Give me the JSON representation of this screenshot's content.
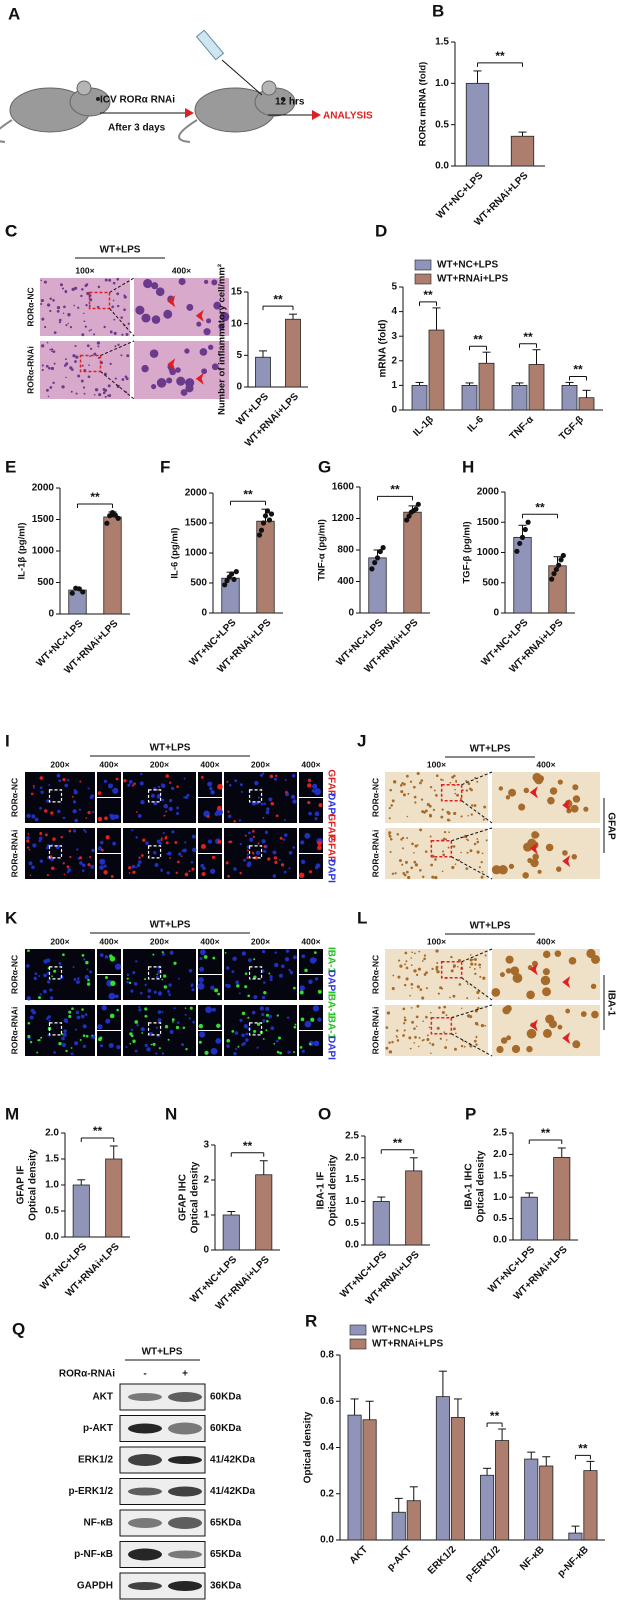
{
  "figures": [
    {
      "panel": "A",
      "route": "ICV RORα RNAi",
      "interval": "After 3 days",
      "wait": "12 hrs",
      "end": "ANALYSIS"
    },
    {
      "panel": "C",
      "header": "WT+LPS",
      "mags": [
        "100×",
        "400×"
      ],
      "rows": [
        "RORα-NC",
        "RORα-RNAi"
      ]
    },
    {
      "panel": "I",
      "header": "WT+LPS",
      "mags": [
        "200×",
        "400×",
        "200×",
        "400×",
        "200×",
        "400×"
      ],
      "rows": [
        "RORα-NC",
        "RORα-RNAi"
      ],
      "stains": [
        "GFAP",
        "DAPI",
        "GFAP",
        "GFAP",
        "DAPI"
      ],
      "stain_colors": [
        "#e02020",
        "#2a35e0",
        "#e02020",
        "#e02020",
        "#2a35e0"
      ]
    },
    {
      "panel": "J",
      "header": "WT+LPS",
      "mags": [
        "100×",
        "400×"
      ],
      "rows": [
        "RORα-NC",
        "RORα-RNAi"
      ],
      "marker": "GFAP"
    },
    {
      "panel": "K",
      "header": "WT+LPS",
      "mags": [
        "200×",
        "400×",
        "200×",
        "400×",
        "200×",
        "400×"
      ],
      "rows": [
        "RORα-NC",
        "RORα-RNAi"
      ],
      "stains": [
        "IBA-1",
        "DAPI",
        "IBA-1",
        "IBA-1",
        "DAPI"
      ],
      "stain_colors": [
        "#22c020",
        "#2a35e0",
        "#22c020",
        "#22c020",
        "#2a35e0"
      ]
    },
    {
      "panel": "L",
      "header": "WT+LPS",
      "mags": [
        "100×",
        "400×"
      ],
      "rows": [
        "RORα-NC",
        "RORα-RNAi"
      ],
      "marker": "IBA-1"
    },
    {
      "panel": "Q",
      "header": "WT+LPS",
      "treatment": "RORα-RNAi",
      "levels": [
        "-",
        "+"
      ],
      "bands": [
        {
          "protein": "AKT",
          "size": "60KDa"
        },
        {
          "protein": "p-AKT",
          "size": "60KDa"
        },
        {
          "protein": "ERK1/2",
          "size": "41/42KDa"
        },
        {
          "protein": "p-ERK1/2",
          "size": "41/42KDa"
        },
        {
          "protein": "NF-κB",
          "size": "65KDa"
        },
        {
          "protein": "p-NF-κB",
          "size": "65KDa"
        },
        {
          "protein": "GAPDH",
          "size": "36KDa"
        }
      ]
    }
  ],
  "chart_data": [
    {
      "panel": "B",
      "type": "bar",
      "ylabel": [
        "RORα mRNA (fold)"
      ],
      "categories": [
        "WT+NC+LPS",
        "WT+RNAi+LPS"
      ],
      "values": [
        1.0,
        0.36
      ],
      "errors": [
        0.15,
        0.05
      ],
      "colors": [
        "#8f94b8",
        "#ad7d6e"
      ],
      "ylim": [
        0,
        1.5
      ],
      "yticks": [
        {
          "value": 0,
          "label": "0.0"
        },
        0.5,
        {
          "value": 1,
          "label": "1.0"
        },
        1.5
      ],
      "sig": "**"
    },
    {
      "panel": "C",
      "type": "bar",
      "ylabel": [
        "Number of inflammatory cell/mm²"
      ],
      "categories": [
        "WT+LPS",
        "WT+RNAi+LPS"
      ],
      "values": [
        4.7,
        10.7
      ],
      "errors": [
        1.0,
        0.8
      ],
      "colors": [
        "#8f94b8",
        "#ad7d6e"
      ],
      "ylim": [
        0,
        15
      ],
      "yticks": [
        0,
        5,
        10,
        15
      ],
      "sig": "**"
    },
    {
      "panel": "D",
      "type": "bar",
      "ylabel": [
        "mRNA (fold)"
      ],
      "categories": [
        "IL-1β",
        "IL-6",
        "TNF-α",
        "TGF-β"
      ],
      "series": [
        {
          "name": "WT+NC+LPS",
          "color": "#8f94b8",
          "values": [
            1.0,
            1.0,
            1.0,
            1.0
          ],
          "errors": [
            0.12,
            0.1,
            0.1,
            0.12
          ]
        },
        {
          "name": "WT+RNAi+LPS",
          "color": "#ad7d6e",
          "values": [
            3.25,
            1.9,
            1.85,
            0.5
          ],
          "errors": [
            0.9,
            0.45,
            0.6,
            0.3
          ]
        }
      ],
      "legend": "top",
      "ylim": [
        0,
        5
      ],
      "yticks": [
        0,
        1,
        2,
        3,
        4,
        5
      ],
      "sig": [
        "**",
        "**",
        "**",
        "**"
      ]
    },
    {
      "panel": "E",
      "type": "bar",
      "ylabel": [
        "IL-1β (pg/ml)"
      ],
      "categories": [
        "WT+NC+LPS",
        "WT+RNAi+LPS"
      ],
      "values": [
        380,
        1540
      ],
      "errors": [
        40,
        80
      ],
      "points": [
        [
          330,
          410,
          400,
          350
        ],
        [
          1440,
          1560,
          1610,
          1570,
          1520
        ]
      ],
      "colors": [
        "#8f94b8",
        "#ad7d6e"
      ],
      "ylim": [
        0,
        2000
      ],
      "yticks": [
        0,
        500,
        1000,
        1500,
        2000
      ],
      "sig": "**"
    },
    {
      "panel": "F",
      "type": "bar",
      "ylabel": [
        "IL-6 (pg/ml)"
      ],
      "categories": [
        "WT+NC+LPS",
        "WT+RNAi+LPS"
      ],
      "values": [
        580,
        1530
      ],
      "errors": [
        100,
        200
      ],
      "points": [
        [
          470,
          540,
          600,
          650,
          560,
          690
        ],
        [
          1300,
          1380,
          1500,
          1620,
          1700,
          1550,
          1650
        ]
      ],
      "colors": [
        "#8f94b8",
        "#ad7d6e"
      ],
      "ylim": [
        0,
        2000
      ],
      "yticks": [
        0,
        500,
        1000,
        1500,
        2000
      ],
      "sig": "**"
    },
    {
      "panel": "G",
      "type": "bar",
      "ylabel": [
        "TNF-α (pg/ml)"
      ],
      "categories": [
        "WT+NC+LPS",
        "WT+RNAi+LPS"
      ],
      "values": [
        700,
        1280
      ],
      "errors": [
        100,
        80
      ],
      "points": [
        [
          560,
          640,
          700,
          780,
          830
        ],
        [
          1180,
          1230,
          1280,
          1300,
          1320,
          1380
        ]
      ],
      "colors": [
        "#8f94b8",
        "#ad7d6e"
      ],
      "ylim": [
        0,
        1600
      ],
      "yticks": [
        0,
        400,
        800,
        1200,
        1600
      ],
      "sig": "**"
    },
    {
      "panel": "H",
      "type": "bar",
      "ylabel": [
        "TGF-β (pg/ml)"
      ],
      "categories": [
        "WT+NC+LPS",
        "WT+RNAi+LPS"
      ],
      "values": [
        1250,
        780
      ],
      "errors": [
        200,
        150
      ],
      "points": [
        [
          1020,
          1150,
          1250,
          1380,
          1500
        ],
        [
          560,
          650,
          720,
          790,
          880,
          950
        ]
      ],
      "colors": [
        "#8f94b8",
        "#ad7d6e"
      ],
      "ylim": [
        0,
        2000
      ],
      "yticks": [
        0,
        500,
        1000,
        1500,
        2000
      ],
      "sig": "**"
    },
    {
      "panel": "M",
      "type": "bar",
      "ylabel": [
        "GFAP IF",
        "Optical density"
      ],
      "categories": [
        "WT+NC+LPS",
        "WT+RNAi+LPS"
      ],
      "values": [
        1.0,
        1.5
      ],
      "errors": [
        0.1,
        0.25
      ],
      "colors": [
        "#8f94b8",
        "#ad7d6e"
      ],
      "ylim": [
        0,
        2
      ],
      "yticks": [
        {
          "value": 0,
          "label": "0.0"
        },
        0.5,
        {
          "value": 1,
          "label": "1.0"
        },
        1.5,
        {
          "value": 2,
          "label": "2.0"
        }
      ],
      "sig": "**"
    },
    {
      "panel": "N",
      "type": "bar",
      "ylabel": [
        "GFAP IHC",
        "Optical density"
      ],
      "categories": [
        "WT+NC+LPS",
        "WT+RNAi+LPS"
      ],
      "values": [
        1.0,
        2.15
      ],
      "errors": [
        0.1,
        0.4
      ],
      "colors": [
        "#8f94b8",
        "#ad7d6e"
      ],
      "ylim": [
        0,
        3
      ],
      "yticks": [
        0,
        1,
        2,
        3
      ],
      "sig": "**"
    },
    {
      "panel": "O",
      "type": "bar",
      "ylabel": [
        "IBA-1 IF",
        "Optical density"
      ],
      "categories": [
        "WT+NC+LPS",
        "WT+RNAi+LPS"
      ],
      "values": [
        1.0,
        1.7
      ],
      "errors": [
        0.1,
        0.3
      ],
      "colors": [
        "#8f94b8",
        "#ad7d6e"
      ],
      "ylim": [
        0,
        2.5
      ],
      "yticks": [
        {
          "value": 0,
          "label": "0.0"
        },
        0.5,
        {
          "value": 1,
          "label": "1.0"
        },
        1.5,
        {
          "value": 2,
          "label": "2.0"
        },
        2.5
      ],
      "sig": "**"
    },
    {
      "panel": "P",
      "type": "bar",
      "ylabel": [
        "IBA-1 IHC",
        "Optical density"
      ],
      "categories": [
        "WT+NC+LPS",
        "WT+RNAi+LPS"
      ],
      "values": [
        1.0,
        1.93
      ],
      "errors": [
        0.1,
        0.22
      ],
      "colors": [
        "#8f94b8",
        "#ad7d6e"
      ],
      "ylim": [
        0,
        2.5
      ],
      "yticks": [
        {
          "value": 0,
          "label": "0.0"
        },
        0.5,
        {
          "value": 1,
          "label": "1.0"
        },
        1.5,
        {
          "value": 2,
          "label": "2.0"
        },
        2.5
      ],
      "sig": "**"
    },
    {
      "panel": "R",
      "type": "bar",
      "ylabel": [
        "Optical density"
      ],
      "categories": [
        "AKT",
        "p-AKT",
        "ERK1/2",
        "p-ERK1/2",
        "NF-κB",
        "p-NF-κB"
      ],
      "series": [
        {
          "name": "WT+NC+LPS",
          "color": "#8f94b8",
          "values": [
            0.54,
            0.12,
            0.62,
            0.28,
            0.35,
            0.03
          ],
          "errors": [
            0.07,
            0.06,
            0.11,
            0.03,
            0.03,
            0.03
          ]
        },
        {
          "name": "WT+RNAi+LPS",
          "color": "#ad7d6e",
          "values": [
            0.52,
            0.17,
            0.53,
            0.43,
            0.32,
            0.3
          ],
          "errors": [
            0.08,
            0.06,
            0.08,
            0.05,
            0.04,
            0.04
          ]
        }
      ],
      "legend": "top",
      "ylim": [
        0,
        0.8
      ],
      "yticks": [
        {
          "value": 0,
          "label": "0.0"
        },
        0.2,
        0.4,
        0.6,
        0.8
      ],
      "sig": [
        null,
        null,
        null,
        "**",
        null,
        "**"
      ]
    }
  ]
}
